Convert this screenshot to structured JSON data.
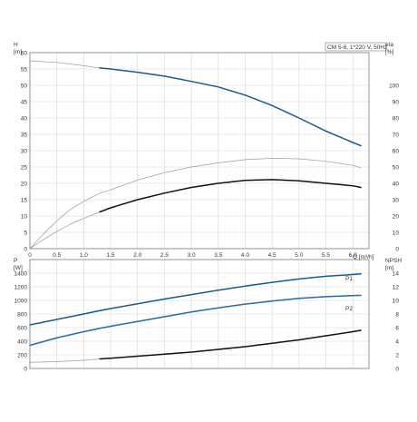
{
  "chart_data": [
    {
      "type": "line",
      "title": "CM 5-6, 1*220 V, 50Hz",
      "xlabel": "Q [m³/h]",
      "ylabel_left": "H",
      "ylabel_left_unit": "[m]",
      "ylabel_right": "eta",
      "ylabel_right_unit": "[%]",
      "xlim": [
        0,
        6.3
      ],
      "ylim_left": [
        0,
        60
      ],
      "ylim_right": [
        0,
        120
      ],
      "grid": true,
      "x_ticks": [
        "0",
        "0.5",
        "1.0",
        "1.5",
        "2.0",
        "2.5",
        "3.0",
        "3.5",
        "4.0",
        "4.5",
        "5.0",
        "5.5",
        "6.0"
      ],
      "y_left_ticks": [
        "0",
        "5",
        "10",
        "15",
        "20",
        "25",
        "30",
        "35",
        "40",
        "45",
        "50",
        "55",
        "60"
      ],
      "y_right_ticks": [
        "0",
        "10",
        "20",
        "30",
        "40",
        "50",
        "60",
        "70",
        "80",
        "90",
        "100"
      ],
      "series": [
        {
          "axis": "left",
          "color": "#9a9a9a",
          "x": [
            0,
            0.5,
            1.0,
            1.3
          ],
          "y": [
            57.5,
            57.0,
            56.0,
            55.3
          ]
        },
        {
          "axis": "left",
          "color": "#1a5a8a",
          "x": [
            1.3,
            1.5,
            2.0,
            2.5,
            3.0,
            3.5,
            4.0,
            4.5,
            5.0,
            5.5,
            6.0,
            6.15
          ],
          "y": [
            55.3,
            55.0,
            54.0,
            52.8,
            51.2,
            49.5,
            47.0,
            43.8,
            40.0,
            36.0,
            32.5,
            31.5
          ]
        },
        {
          "axis": "right",
          "color": "#9a9a9a",
          "x": [
            0,
            0.25,
            0.5,
            0.75,
            1.0,
            1.3,
            1.5,
            2.0,
            2.5,
            3.0,
            3.5,
            4.0,
            4.5,
            5.0,
            5.5,
            6.0,
            6.15
          ],
          "y": [
            0,
            9,
            17,
            24,
            29,
            34,
            36,
            42,
            46.5,
            50,
            52.5,
            54.5,
            55.3,
            55,
            53.5,
            51,
            49.5
          ]
        },
        {
          "axis": "right",
          "color": "#9a9a9a",
          "x": [
            0,
            0.25,
            0.5,
            0.75,
            1.0,
            1.3
          ],
          "y": [
            0,
            5.5,
            10.5,
            15,
            18.5,
            22.5
          ]
        },
        {
          "axis": "right",
          "color": "#111111",
          "x": [
            1.3,
            1.5,
            2.0,
            2.5,
            3.0,
            3.5,
            4.0,
            4.5,
            5.0,
            5.5,
            6.0,
            6.15
          ],
          "y": [
            22.5,
            25,
            30,
            34,
            37.5,
            40,
            41.8,
            42.3,
            41.5,
            40,
            38.5,
            37.5
          ]
        }
      ]
    },
    {
      "type": "line",
      "ylabel_left": "P",
      "ylabel_left_unit": "[W]",
      "ylabel_right": "NPSH",
      "ylabel_right_unit": "[m]",
      "xlim": [
        0,
        6.3
      ],
      "ylim_left": [
        0,
        1600
      ],
      "ylim_right": [
        0,
        16
      ],
      "grid": true,
      "y_left_ticks": [
        "0",
        "200",
        "400",
        "600",
        "800",
        "1000",
        "1200",
        "1400"
      ],
      "y_right_ticks": [
        "0",
        "2",
        "4",
        "6",
        "8",
        "10",
        "12",
        "14"
      ],
      "series": [
        {
          "name": "P1",
          "axis": "left",
          "color": "#1a5a8a",
          "x": [
            0,
            0.5,
            1.0,
            1.3,
            1.5,
            2.0,
            2.5,
            3.0,
            3.5,
            4.0,
            4.5,
            5.0,
            5.5,
            6.0,
            6.15
          ],
          "y": [
            640,
            720,
            800,
            850,
            880,
            950,
            1020,
            1085,
            1150,
            1210,
            1265,
            1315,
            1355,
            1380,
            1390
          ]
        },
        {
          "name": "P2",
          "axis": "left",
          "color": "#2a6aa0",
          "x": [
            0,
            0.5,
            1.0,
            1.3,
            1.5,
            2.0,
            2.5,
            3.0,
            3.5,
            4.0,
            4.5,
            5.0,
            5.5,
            6.0,
            6.15
          ],
          "y": [
            340,
            450,
            540,
            590,
            620,
            690,
            760,
            830,
            890,
            945,
            990,
            1030,
            1055,
            1070,
            1075
          ]
        },
        {
          "axis": "right",
          "color": "#9a9a9a",
          "x": [
            0,
            0.5,
            1.0,
            1.3
          ],
          "y": [
            0.9,
            1.0,
            1.2,
            1.4
          ]
        },
        {
          "axis": "right",
          "color": "#111111",
          "x": [
            1.3,
            1.5,
            2.0,
            2.5,
            3.0,
            3.5,
            4.0,
            4.5,
            5.0,
            5.5,
            6.0,
            6.15
          ],
          "y": [
            1.4,
            1.5,
            1.8,
            2.1,
            2.4,
            2.8,
            3.2,
            3.7,
            4.2,
            4.8,
            5.4,
            5.6
          ]
        }
      ]
    }
  ]
}
